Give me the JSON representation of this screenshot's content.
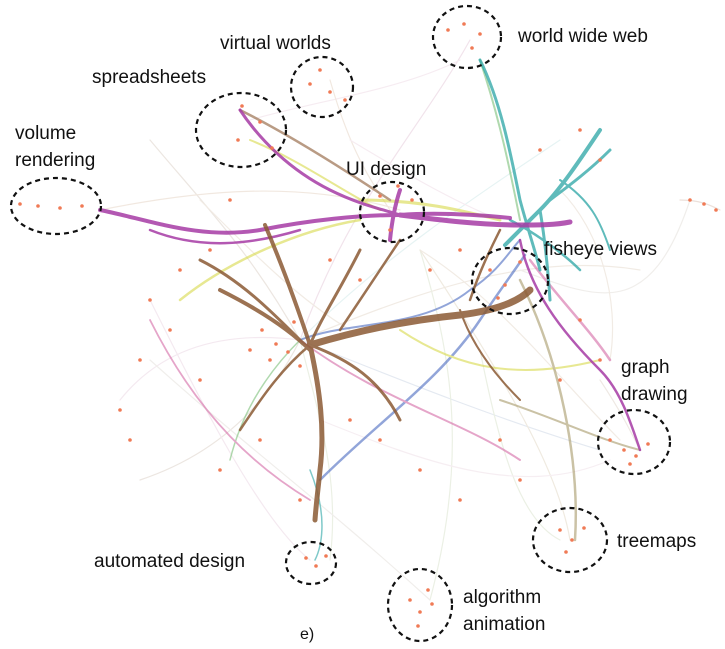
{
  "panel_label": "e)",
  "colors": {
    "brown": "#8b5a34",
    "magenta": "#a63ba5",
    "teal": "#2aa5a5",
    "yellow": "#d8d94a",
    "blue": "#4a6bc0",
    "pink": "#d46aa6",
    "green": "#7cc07a",
    "gray": "#b7ada3",
    "tan": "#a89a6a",
    "node": "#f07a55",
    "circle": "#111111"
  },
  "clusters": [
    {
      "id": "world-wide-web",
      "text": "world wide web"
    },
    {
      "id": "virtual-worlds",
      "text": "virtual worlds"
    },
    {
      "id": "spreadsheets",
      "text": "spreadsheets"
    },
    {
      "id": "volume-rendering",
      "text": "volume\nrendering"
    },
    {
      "id": "ui-design",
      "text": "UI design"
    },
    {
      "id": "fisheye-views",
      "text": "fisheye views"
    },
    {
      "id": "graph-drawing",
      "text": "graph\ndrawing"
    },
    {
      "id": "treemaps",
      "text": "treemaps"
    },
    {
      "id": "automated-design",
      "text": "automated design"
    },
    {
      "id": "algorithm-animation",
      "text": "algorithm\nanimation"
    }
  ]
}
